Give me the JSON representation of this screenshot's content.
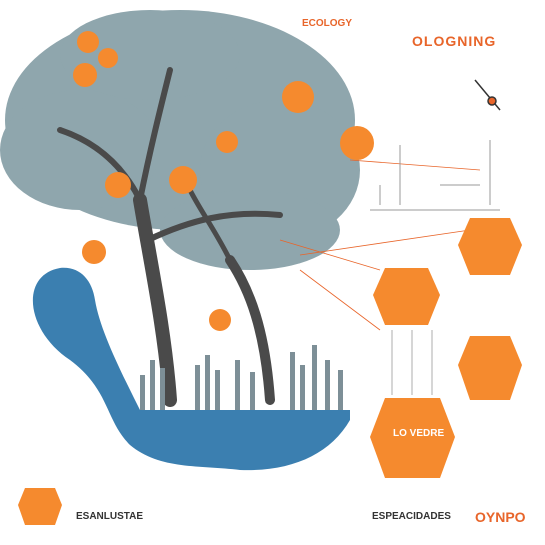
{
  "colors": {
    "orange": "#f58a2e",
    "orange_dark": "#e8652a",
    "blue": "#3b7fb0",
    "foliage": "#8fa6ad",
    "trunk": "#4a4a4a",
    "text": "#333333"
  },
  "labels": {
    "top_small": "ECOLOGY",
    "title": "OLOGNING",
    "bottom_left": "ESANLUSTAE",
    "bottom_center": "ESPEACIDADES",
    "bottom_right": "OYNPO",
    "badge_text": "LO VEDRE"
  },
  "icons": {
    "orange_badges": "orange-hexagon-badge",
    "pointer": "compass-arrow-icon"
  }
}
